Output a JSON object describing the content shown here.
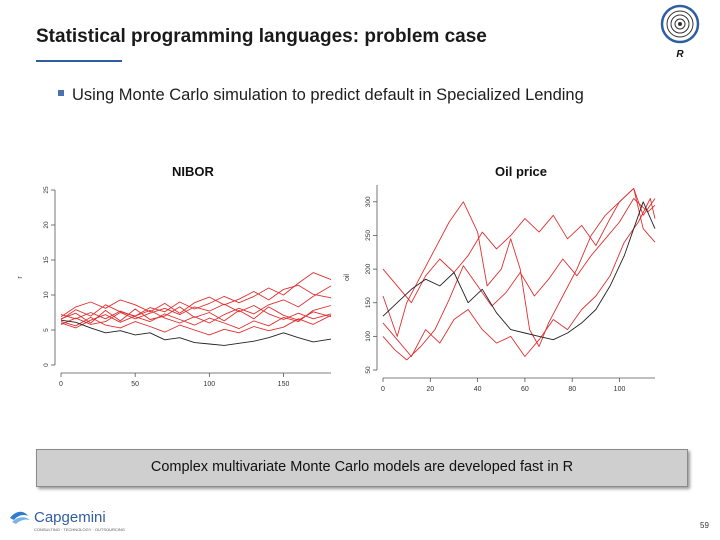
{
  "slide": {
    "title": "Statistical programming languages: problem case",
    "bullet": "Using Monte Carlo simulation to predict default in Specialized Lending",
    "r_logo_letter": "R",
    "caption": "Complex multivariate Monte Carlo models are developed fast in R",
    "brand": "Capgemini",
    "brand_tagline": "CONSULTING · TECHNOLOGY · OUTSOURCING",
    "page_number": "59",
    "colors": {
      "accent": "#2f5ea0",
      "series_red": "#e03030",
      "series_black": "#222222"
    }
  },
  "chart_data": [
    {
      "type": "line",
      "title": "NIBOR",
      "xlabel": "",
      "ylabel": "r",
      "xlim": [
        0,
        182
      ],
      "ylim": [
        0,
        25
      ],
      "xticks": [
        "0",
        "50",
        "100",
        "150"
      ],
      "yticks": [
        "0",
        "5",
        "10",
        "15",
        "20",
        "25"
      ],
      "series": [
        {
          "color": "#e03030",
          "points": [
            [
              0,
              6.6
            ],
            [
              10,
              7.4
            ],
            [
              20,
              6.0
            ],
            [
              30,
              7.8
            ],
            [
              40,
              6.3
            ],
            [
              50,
              8.0
            ],
            [
              60,
              6.5
            ],
            [
              70,
              7.0
            ],
            [
              80,
              8.3
            ],
            [
              90,
              6.8
            ],
            [
              100,
              7.5
            ],
            [
              110,
              6.3
            ],
            [
              120,
              7.8
            ],
            [
              130,
              6.6
            ],
            [
              140,
              8.3
            ],
            [
              150,
              7.1
            ],
            [
              160,
              6.4
            ],
            [
              170,
              7.6
            ],
            [
              182,
              6.9
            ]
          ]
        },
        {
          "color": "#e03030",
          "points": [
            [
              0,
              6.2
            ],
            [
              10,
              5.6
            ],
            [
              20,
              6.8
            ],
            [
              30,
              5.7
            ],
            [
              40,
              5.3
            ],
            [
              50,
              6.2
            ],
            [
              60,
              5.5
            ],
            [
              70,
              4.7
            ],
            [
              80,
              5.7
            ],
            [
              90,
              5.0
            ],
            [
              100,
              4.3
            ],
            [
              110,
              5.1
            ],
            [
              120,
              4.6
            ],
            [
              130,
              5.5
            ],
            [
              140,
              4.9
            ],
            [
              150,
              5.4
            ],
            [
              160,
              6.6
            ],
            [
              170,
              5.8
            ],
            [
              182,
              7.1
            ]
          ]
        },
        {
          "color": "#e03030",
          "points": [
            [
              0,
              6.9
            ],
            [
              10,
              8.3
            ],
            [
              20,
              9.0
            ],
            [
              30,
              8.1
            ],
            [
              40,
              9.3
            ],
            [
              50,
              8.6
            ],
            [
              60,
              7.6
            ],
            [
              70,
              8.8
            ],
            [
              80,
              7.4
            ],
            [
              90,
              8.9
            ],
            [
              100,
              9.7
            ],
            [
              110,
              8.6
            ],
            [
              120,
              9.4
            ],
            [
              130,
              10.5
            ],
            [
              140,
              9.3
            ],
            [
              150,
              10.8
            ],
            [
              160,
              11.4
            ],
            [
              170,
              10.1
            ],
            [
              182,
              9.6
            ]
          ]
        },
        {
          "color": "#e03030",
          "points": [
            [
              0,
              6.0
            ],
            [
              10,
              5.3
            ],
            [
              20,
              6.4
            ],
            [
              30,
              7.2
            ],
            [
              40,
              6.1
            ],
            [
              50,
              7.0
            ],
            [
              60,
              7.8
            ],
            [
              70,
              6.7
            ],
            [
              80,
              6.0
            ],
            [
              90,
              6.9
            ],
            [
              100,
              6.0
            ],
            [
              110,
              7.2
            ],
            [
              120,
              8.1
            ],
            [
              130,
              7.3
            ],
            [
              140,
              8.6
            ],
            [
              150,
              9.3
            ],
            [
              160,
              8.3
            ],
            [
              170,
              9.8
            ],
            [
              182,
              11.3
            ]
          ]
        },
        {
          "color": "#e03030",
          "points": [
            [
              0,
              7.2
            ],
            [
              10,
              6.6
            ],
            [
              20,
              7.5
            ],
            [
              30,
              6.6
            ],
            [
              40,
              7.7
            ],
            [
              50,
              6.9
            ],
            [
              60,
              6.2
            ],
            [
              70,
              7.3
            ],
            [
              80,
              6.5
            ],
            [
              90,
              5.7
            ],
            [
              100,
              6.7
            ],
            [
              110,
              6.0
            ],
            [
              120,
              5.2
            ],
            [
              130,
              6.3
            ],
            [
              140,
              5.6
            ],
            [
              150,
              6.8
            ],
            [
              160,
              6.2
            ],
            [
              170,
              7.8
            ],
            [
              182,
              8.5
            ]
          ]
        },
        {
          "color": "#e03030",
          "points": [
            [
              0,
              5.8
            ],
            [
              10,
              6.7
            ],
            [
              20,
              5.8
            ],
            [
              30,
              6.2
            ],
            [
              40,
              7.5
            ],
            [
              50,
              6.6
            ],
            [
              60,
              7.4
            ],
            [
              70,
              8.1
            ],
            [
              80,
              7.2
            ],
            [
              90,
              8.3
            ],
            [
              100,
              7.7
            ],
            [
              110,
              8.7
            ],
            [
              120,
              7.6
            ],
            [
              130,
              8.5
            ],
            [
              140,
              7.3
            ],
            [
              150,
              6.5
            ],
            [
              160,
              7.4
            ],
            [
              170,
              6.6
            ],
            [
              182,
              7.3
            ]
          ]
        },
        {
          "color": "#e03030",
          "points": [
            [
              0,
              6.5
            ],
            [
              10,
              7.9
            ],
            [
              20,
              7.0
            ],
            [
              30,
              8.6
            ],
            [
              40,
              7.6
            ],
            [
              50,
              7.0
            ],
            [
              60,
              8.2
            ],
            [
              70,
              7.6
            ],
            [
              80,
              9.0
            ],
            [
              90,
              8.0
            ],
            [
              100,
              8.8
            ],
            [
              110,
              9.8
            ],
            [
              120,
              8.9
            ],
            [
              130,
              9.8
            ],
            [
              140,
              11.0
            ],
            [
              150,
              10.0
            ],
            [
              160,
              11.7
            ],
            [
              170,
              13.2
            ],
            [
              182,
              12.2
            ]
          ]
        },
        {
          "color": "#222222",
          "points": [
            [
              0,
              6.4
            ],
            [
              10,
              6.1
            ],
            [
              20,
              5.3
            ],
            [
              30,
              4.6
            ],
            [
              40,
              4.9
            ],
            [
              50,
              4.3
            ],
            [
              60,
              4.6
            ],
            [
              70,
              3.6
            ],
            [
              80,
              3.9
            ],
            [
              90,
              3.2
            ],
            [
              100,
              3.0
            ],
            [
              110,
              2.8
            ],
            [
              120,
              3.1
            ],
            [
              130,
              3.4
            ],
            [
              140,
              3.9
            ],
            [
              150,
              4.6
            ],
            [
              160,
              3.9
            ],
            [
              170,
              3.3
            ],
            [
              182,
              3.7
            ]
          ]
        }
      ]
    },
    {
      "type": "line",
      "title": "Oil price",
      "xlabel": "",
      "ylabel": "oil",
      "xlim": [
        0,
        115
      ],
      "ylim": [
        50,
        325
      ],
      "xticks": [
        "0",
        "20",
        "40",
        "60",
        "80",
        "100"
      ],
      "yticks": [
        "300",
        "250",
        "200",
        "150",
        "100",
        "50"
      ],
      "series": [
        {
          "color": "#e03030",
          "points": [
            [
              0,
              160
            ],
            [
              6,
              100
            ],
            [
              10,
              150
            ],
            [
              16,
              190
            ],
            [
              22,
              230
            ],
            [
              28,
              270
            ],
            [
              34,
              300
            ],
            [
              40,
              255
            ],
            [
              44,
              175
            ],
            [
              50,
              200
            ],
            [
              54,
              245
            ],
            [
              58,
              200
            ],
            [
              62,
              110
            ],
            [
              66,
              85
            ],
            [
              70,
              120
            ],
            [
              76,
              160
            ],
            [
              82,
              200
            ],
            [
              88,
              250
            ],
            [
              94,
              280
            ],
            [
              100,
              300
            ],
            [
              106,
              320
            ],
            [
              110,
              260
            ],
            [
              115,
              240
            ]
          ]
        },
        {
          "color": "#e03030",
          "points": [
            [
              0,
              200
            ],
            [
              6,
              175
            ],
            [
              12,
              150
            ],
            [
              18,
              190
            ],
            [
              24,
              215
            ],
            [
              30,
              195
            ],
            [
              36,
              220
            ],
            [
              42,
              255
            ],
            [
              48,
              230
            ],
            [
              54,
              250
            ],
            [
              60,
              275
            ],
            [
              66,
              255
            ],
            [
              72,
              280
            ],
            [
              78,
              245
            ],
            [
              84,
              265
            ],
            [
              90,
              235
            ],
            [
              96,
              275
            ],
            [
              100,
              300
            ],
            [
              106,
              320
            ],
            [
              110,
              280
            ],
            [
              115,
              305
            ]
          ]
        },
        {
          "color": "#e03030",
          "points": [
            [
              0,
              120
            ],
            [
              6,
              95
            ],
            [
              12,
              70
            ],
            [
              18,
              110
            ],
            [
              24,
              90
            ],
            [
              30,
              125
            ],
            [
              36,
              140
            ],
            [
              42,
              110
            ],
            [
              48,
              90
            ],
            [
              54,
              100
            ],
            [
              60,
              70
            ],
            [
              66,
              95
            ],
            [
              72,
              125
            ],
            [
              78,
              110
            ],
            [
              84,
              140
            ],
            [
              90,
              160
            ],
            [
              96,
              190
            ],
            [
              102,
              240
            ],
            [
              108,
              270
            ],
            [
              113,
              305
            ],
            [
              115,
              275
            ]
          ]
        },
        {
          "color": "#e03030",
          "points": [
            [
              0,
              100
            ],
            [
              5,
              80
            ],
            [
              10,
              65
            ],
            [
              16,
              85
            ],
            [
              22,
              110
            ],
            [
              28,
              155
            ],
            [
              34,
              205
            ],
            [
              40,
              175
            ],
            [
              46,
              145
            ],
            [
              52,
              165
            ],
            [
              58,
              195
            ],
            [
              64,
              160
            ],
            [
              70,
              185
            ],
            [
              76,
              215
            ],
            [
              82,
              190
            ],
            [
              88,
              220
            ],
            [
              94,
              245
            ],
            [
              100,
              270
            ],
            [
              106,
              305
            ],
            [
              112,
              285
            ],
            [
              115,
              295
            ]
          ]
        },
        {
          "color": "#222222",
          "points": [
            [
              0,
              130
            ],
            [
              6,
              150
            ],
            [
              12,
              170
            ],
            [
              18,
              185
            ],
            [
              24,
              175
            ],
            [
              30,
              195
            ],
            [
              36,
              150
            ],
            [
              42,
              170
            ],
            [
              48,
              135
            ],
            [
              54,
              110
            ],
            [
              60,
              105
            ],
            [
              66,
              100
            ],
            [
              72,
              95
            ],
            [
              78,
              105
            ],
            [
              84,
              120
            ],
            [
              90,
              140
            ],
            [
              96,
              175
            ],
            [
              102,
              220
            ],
            [
              106,
              260
            ],
            [
              110,
              300
            ],
            [
              115,
              260
            ]
          ]
        }
      ]
    }
  ]
}
